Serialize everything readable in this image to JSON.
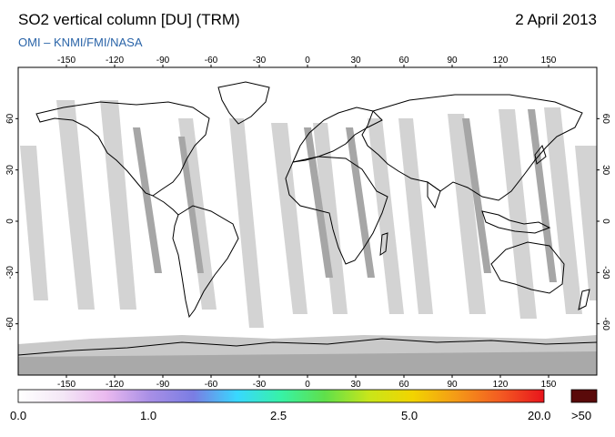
{
  "header": {
    "title": "SO2 vertical column [DU] (TRM)",
    "date": "2 April 2013",
    "source": "OMI  –  KNMI/FMI/NASA"
  },
  "map": {
    "projection": "equirectangular",
    "lon_range": [
      -180,
      180
    ],
    "lat_range": [
      -90,
      90
    ],
    "lon_ticks_top": [
      -150,
      -120,
      -90,
      -60,
      -30,
      0,
      30,
      60,
      90,
      120,
      150
    ],
    "lon_ticks_bottom": [
      -150,
      -120,
      -90,
      -60,
      -30,
      0,
      30,
      60,
      90,
      120,
      150
    ],
    "lat_ticks": [
      60,
      30,
      0,
      -30,
      -60
    ],
    "colors": {
      "background": "#ffffff",
      "no_data_swath_gap": "#d3d3d3",
      "excluded_row_stripe": "#a6a6a6",
      "polar_no_data": "#a9a9a9",
      "coastline": "#000000"
    }
  },
  "colorbar": {
    "labels": [
      "0.0",
      "1.0",
      "2.5",
      "5.0",
      "20.0",
      ">50"
    ],
    "stops": [
      "#ffffff",
      "#f4e8f6",
      "#eab9ef",
      "#a88fe6",
      "#7a7de3",
      "#38d8ff",
      "#37f2a6",
      "#5fe04a",
      "#c8e61a",
      "#f2d400",
      "#f49a17",
      "#f35b22",
      "#e8141c"
    ],
    "overflow_color": "#5a0a0a"
  }
}
